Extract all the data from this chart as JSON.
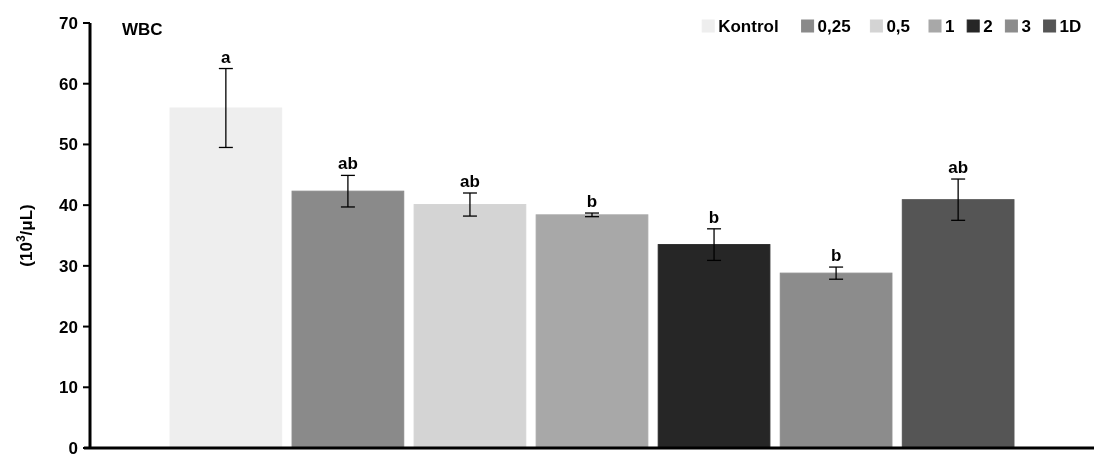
{
  "chart_data": {
    "type": "bar",
    "title": "WBC",
    "ylabel": "(10$^{3}$/μL)",
    "categories": [
      null
    ],
    "series": [
      {
        "name": "Kontrol",
        "color": "#eeeeee",
        "values": [
          56
        ],
        "errors": [
          6.5
        ],
        "value_labels": [
          "a"
        ]
      },
      {
        "name": "0,25",
        "color": "#8a8a8a",
        "values": [
          42.3
        ],
        "errors": [
          2.6
        ],
        "value_labels": [
          "ab"
        ]
      },
      {
        "name": "0,5",
        "color": "#d4d4d4",
        "values": [
          40.1
        ],
        "errors": [
          1.9
        ],
        "value_labels": [
          "ab"
        ]
      },
      {
        "name": "1",
        "color": "#a8a8a8",
        "values": [
          38.4
        ],
        "errors": [
          0.3
        ],
        "value_labels": [
          "b"
        ]
      },
      {
        "name": "2",
        "color": "#262626",
        "values": [
          33.5
        ],
        "errors": [
          2.6
        ],
        "value_labels": [
          "b"
        ]
      },
      {
        "name": "3",
        "color": "#8c8c8c",
        "values": [
          28.8
        ],
        "errors": [
          1.0
        ],
        "value_labels": [
          "b"
        ]
      },
      {
        "name": "1D",
        "color": "#555555",
        "values": [
          40.9
        ],
        "errors": [
          3.4
        ],
        "value_labels": [
          "ab"
        ]
      }
    ],
    "ylim": [
      0,
      70
    ],
    "yticks": [
      0,
      10,
      20,
      30,
      40,
      50,
      60,
      70
    ],
    "legend": "top right"
  }
}
